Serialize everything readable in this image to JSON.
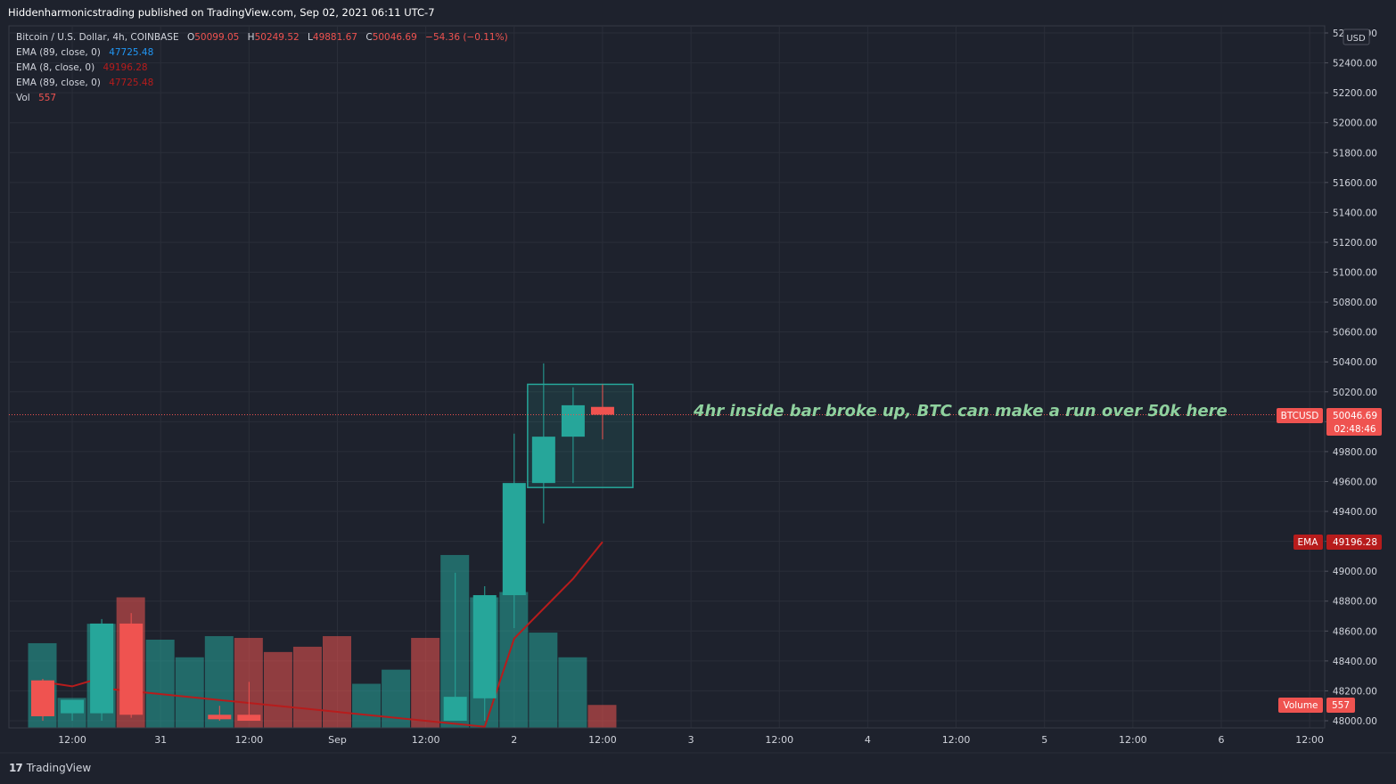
{
  "header": {
    "published_by": "Hiddenharmonicstrading published on TradingView.com, Sep 02, 2021 06:11 UTC-7"
  },
  "legend": {
    "symbol": "Bitcoin / U.S. Dollar, 4h, COINBASE",
    "ohlc": {
      "o_label": "O",
      "o": "50099.05",
      "h_label": "H",
      "h": "50249.52",
      "l_label": "L",
      "l": "49881.67",
      "c_label": "C",
      "c": "50046.69",
      "change": "−54.36 (−0.11%)"
    },
    "indicators": [
      {
        "label": "EMA (89, close, 0)",
        "value": "47725.48",
        "color": "#2196f3"
      },
      {
        "label": "EMA (8, close, 0)",
        "value": "49196.28",
        "color": "#ef5350"
      },
      {
        "label": "EMA (89, close, 0)",
        "value": "47725.48",
        "color": "#ef5350"
      },
      {
        "label": "Vol",
        "value": "557",
        "color": "#ef5350"
      }
    ]
  },
  "price_axis": {
    "currency": "USD",
    "symbol_tag": "BTCUSD",
    "last_price": "50046.69",
    "countdown": "02:48:46",
    "ema_tag": "EMA",
    "ema_value": "49196.28",
    "volume_tag": "Volume",
    "volume_value": "557"
  },
  "annotation": {
    "text": "4hr inside bar broke up, BTC can make a run over 50k here",
    "color": "#8fd19e"
  },
  "footer": {
    "logo_mark": "17",
    "brand": "TradingView"
  },
  "colors": {
    "background": "#1e222d",
    "up": "#26a69a",
    "down": "#ef5350",
    "volume_up": "#26a69a",
    "volume_down": "#ef5350",
    "ema_line": "#b71c1c",
    "grid": "#2a2e39"
  },
  "chart_data": {
    "type": "candlestick",
    "title": "Bitcoin / U.S. Dollar, 4h, COINBASE",
    "ylim": [
      47950,
      52650
    ],
    "yticks": [
      48000,
      48200,
      48400,
      48600,
      48800,
      49000,
      49200,
      49400,
      49600,
      49800,
      50000,
      50200,
      50400,
      50600,
      50800,
      51000,
      51200,
      51400,
      51600,
      51800,
      52000,
      52200,
      52400,
      52600
    ],
    "ytick_labels": [
      "48000.00",
      "48200.00",
      "48400.00",
      "48600.00",
      "48800.00",
      "49000.00",
      "49200.00",
      "49400.00",
      "49600.00",
      "49800.00",
      "50000.00",
      "50200.00",
      "50400.00",
      "50600.00",
      "50800.00",
      "51000.00",
      "51200.00",
      "51400.00",
      "51600.00",
      "51800.00",
      "52000.00",
      "52200.00",
      "52400.00",
      "52600.00"
    ],
    "xticks": [
      {
        "i": 1,
        "label": "12:00"
      },
      {
        "i": 4,
        "label": "31"
      },
      {
        "i": 7,
        "label": "12:00"
      },
      {
        "i": 10,
        "label": "Sep"
      },
      {
        "i": 13,
        "label": "12:00"
      },
      {
        "i": 16,
        "label": "2"
      },
      {
        "i": 19,
        "label": "12:00"
      },
      {
        "i": 22,
        "label": "3"
      },
      {
        "i": 25,
        "label": "12:00"
      },
      {
        "i": 28,
        "label": "4"
      },
      {
        "i": 31,
        "label": "12:00"
      },
      {
        "i": 34,
        "label": "5"
      },
      {
        "i": 37,
        "label": "12:00"
      },
      {
        "i": 40,
        "label": "6"
      },
      {
        "i": 43,
        "label": "12:00"
      }
    ],
    "candles": [
      {
        "i": 0,
        "o": 48270,
        "h": 48280,
        "l": 48000,
        "c": 48030
      },
      {
        "i": 1,
        "o": 48050,
        "h": 48120,
        "l": 48000,
        "c": 48140
      },
      {
        "i": 2,
        "o": 48050,
        "h": 48680,
        "l": 48000,
        "c": 48650
      },
      {
        "i": 3,
        "o": 48650,
        "h": 48720,
        "l": 48020,
        "c": 48040
      },
      {
        "i": 6,
        "o": 48040,
        "h": 48100,
        "l": 48000,
        "c": 48010
      },
      {
        "i": 7,
        "o": 48040,
        "h": 48260,
        "l": 48000,
        "c": 48000
      },
      {
        "i": 14,
        "o": 48000,
        "h": 48990,
        "l": 48000,
        "c": 48160
      },
      {
        "i": 15,
        "o": 48150,
        "h": 48900,
        "l": 48000,
        "c": 48840
      },
      {
        "i": 16,
        "o": 48840,
        "h": 49920,
        "l": 48620,
        "c": 49590
      },
      {
        "i": 17,
        "o": 49590,
        "h": 50390,
        "l": 49320,
        "c": 49900
      },
      {
        "i": 18,
        "o": 49900,
        "h": 50230,
        "l": 49590,
        "c": 50110
      },
      {
        "i": 19,
        "o": 50099.05,
        "h": 50249.52,
        "l": 49881.67,
        "c": 50046.69
      }
    ],
    "volume": {
      "direction": [
        "up",
        "up",
        "up",
        "down",
        "up",
        "up",
        "up",
        "down",
        "down",
        "down",
        "down",
        "up",
        "up",
        "down",
        "up",
        "up",
        "up",
        "up",
        "up",
        "down"
      ],
      "values": [
        0.48,
        0.17,
        0.59,
        0.74,
        0.5,
        0.4,
        0.52,
        0.51,
        0.43,
        0.46,
        0.52,
        0.25,
        0.33,
        0.51,
        0.98,
        0.74,
        0.77,
        0.54,
        0.4,
        0.13
      ]
    },
    "ema8": [
      {
        "i": 0,
        "v": 48260
      },
      {
        "i": 1,
        "v": 48230
      },
      {
        "i": 1.6,
        "v": 48265
      },
      {
        "i": 2.4,
        "v": 48210
      },
      {
        "i": 15,
        "v": 47960
      },
      {
        "i": 16,
        "v": 48550
      },
      {
        "i": 18,
        "v": 48950
      },
      {
        "i": 19,
        "v": 49196.28
      }
    ],
    "last_price": 50046.69,
    "ema_last": 49196.28,
    "highlight_box": {
      "i_from": 17,
      "i_to": 19,
      "y_from": 49560,
      "y_to": 50250
    }
  }
}
